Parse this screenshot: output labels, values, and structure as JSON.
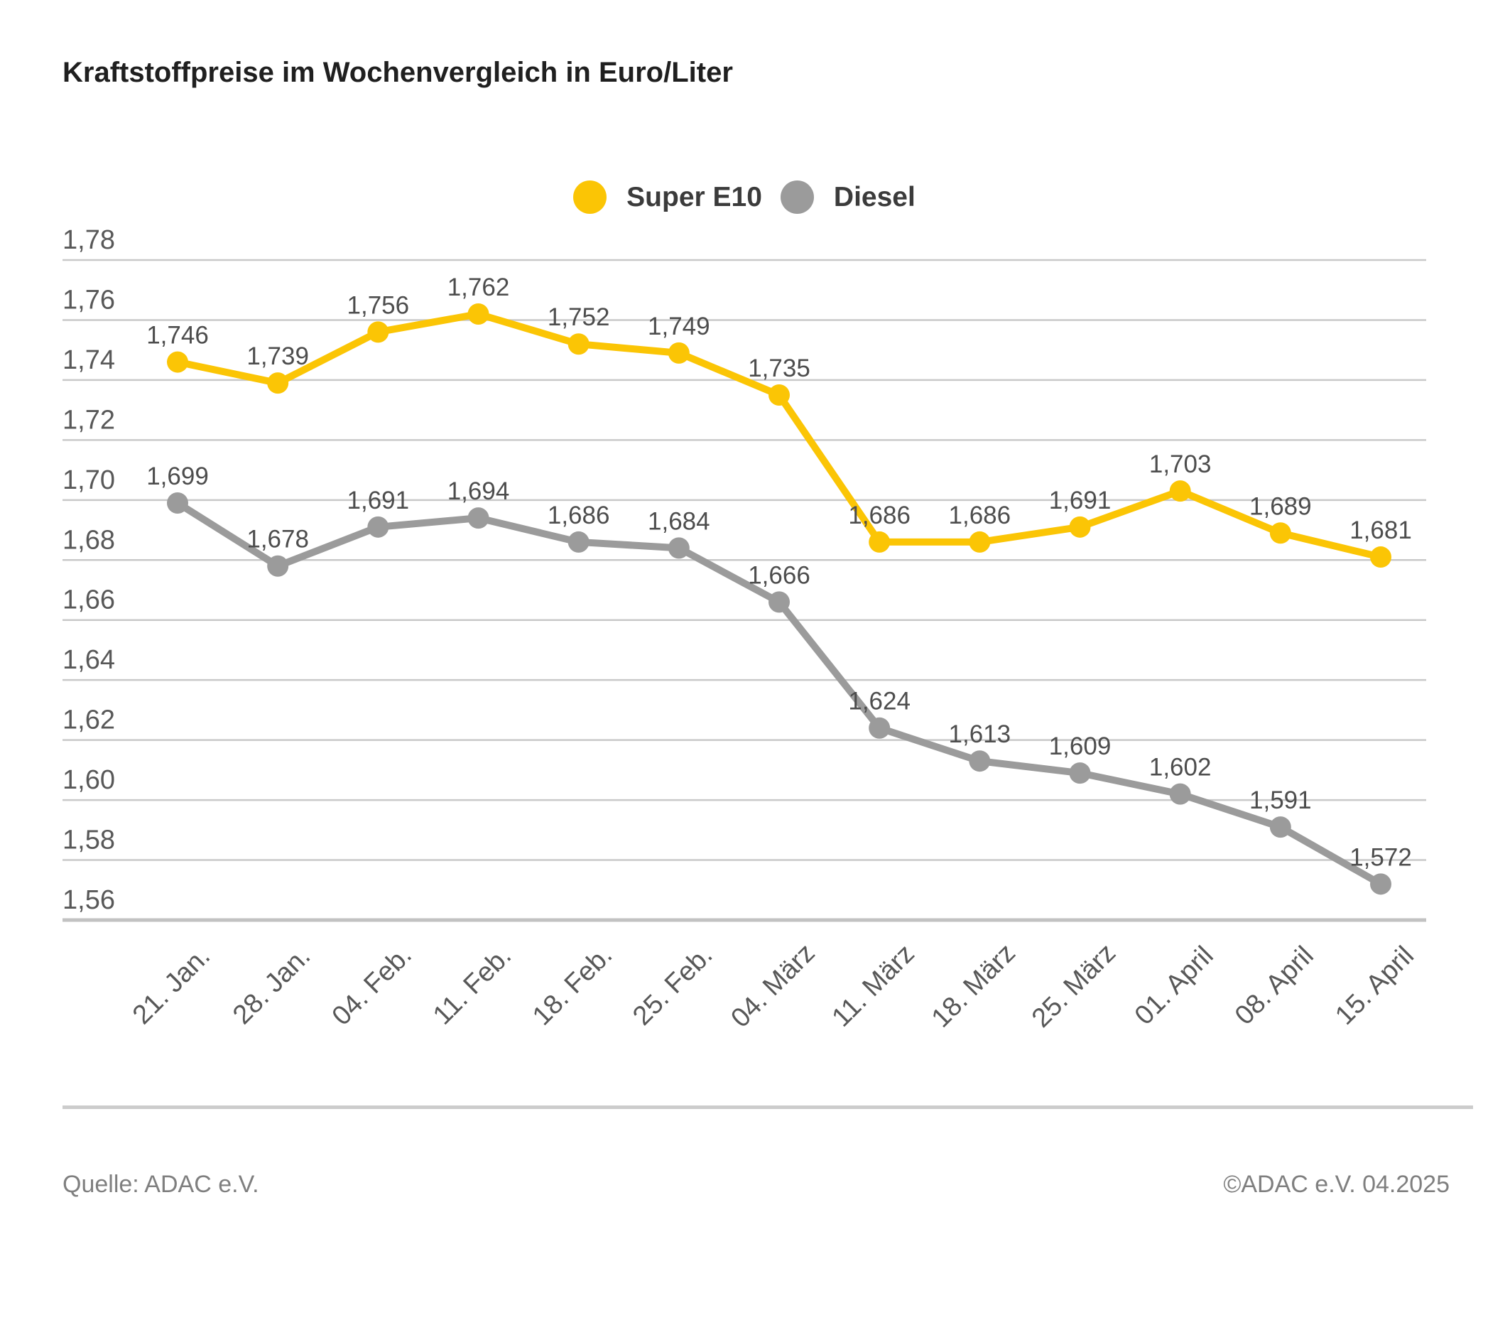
{
  "title": "Kraftstoffpreise im Wochenvergleich in Euro/Liter",
  "legend": {
    "items": [
      {
        "label": "Super E10",
        "color": "#FBC505"
      },
      {
        "label": "Diesel",
        "color": "#9B9B9B"
      }
    ]
  },
  "chart_data": {
    "type": "line",
    "title": "Kraftstoffpreise im Wochenvergleich in Euro/Liter",
    "categories": [
      "21. Jan.",
      "28. Jan.",
      "04. Feb.",
      "11. Feb.",
      "18. Feb.",
      "25. Feb.",
      "04. März",
      "11. März",
      "18. März",
      "25. März",
      "01. April",
      "08. April",
      "15. April"
    ],
    "series": [
      {
        "name": "Super E10",
        "color": "#FBC505",
        "values": [
          1.746,
          1.739,
          1.756,
          1.762,
          1.752,
          1.749,
          1.735,
          1.686,
          1.686,
          1.691,
          1.703,
          1.689,
          1.681
        ]
      },
      {
        "name": "Diesel",
        "color": "#9B9B9B",
        "values": [
          1.699,
          1.678,
          1.691,
          1.694,
          1.686,
          1.684,
          1.666,
          1.624,
          1.613,
          1.609,
          1.602,
          1.591,
          1.572
        ]
      }
    ],
    "unit": "Euro/Liter",
    "ylim": [
      1.56,
      1.78
    ],
    "ytick_step": 0.02,
    "value_decimals": 3,
    "ytick_decimals": 2,
    "decimal_separator": ",",
    "grid": "horizontal",
    "legend_position": "top",
    "x_label_rotation": -45
  },
  "styles": {
    "gridline_color": "#c9c9c9",
    "axisline_color": "#c2c2c2",
    "tick_label_color": "#585858",
    "value_label_color": "#4d4d4d"
  },
  "footer": {
    "source": "Quelle: ADAC e.V.",
    "copyright": "©ADAC e.V. 04.2025"
  }
}
